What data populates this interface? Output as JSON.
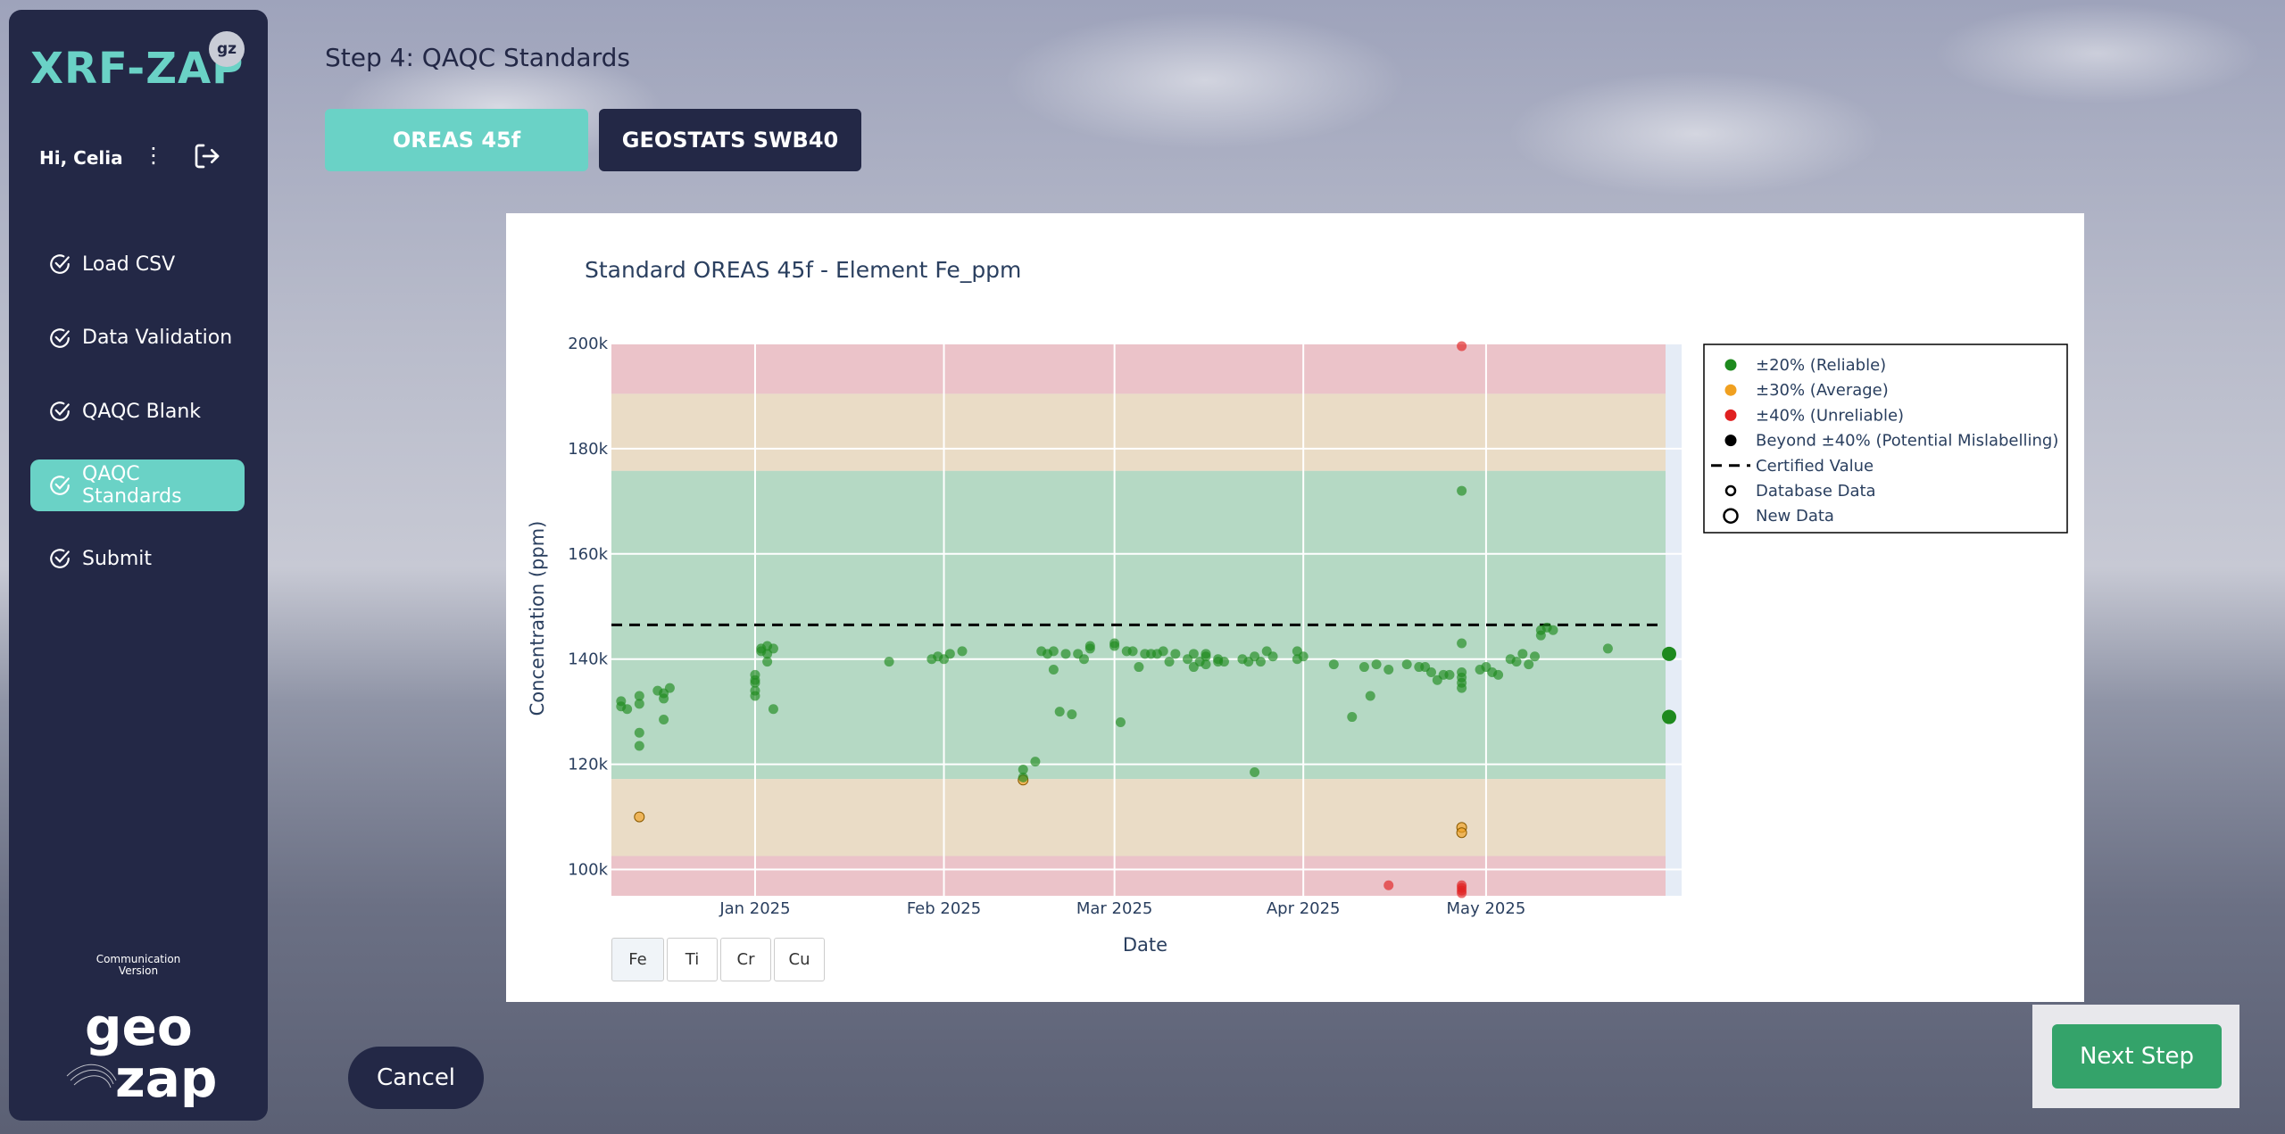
{
  "app": {
    "logo_text": "XRF-ZAP",
    "logo_badge": "gz",
    "greeting": "Hi, Celia",
    "version_line1": "Communication",
    "version_line2": "Version",
    "brand_logo": "geo zap"
  },
  "nav": {
    "items": [
      {
        "label": "Load CSV",
        "active": false
      },
      {
        "label": "Data Validation",
        "active": false
      },
      {
        "label": "QAQC Blank",
        "active": false
      },
      {
        "label": "QAQC Standards",
        "active": true
      },
      {
        "label": "Submit",
        "active": false
      }
    ]
  },
  "page": {
    "step_title": "Step 4: QAQC Standards",
    "tabs": [
      "OREAS 45f",
      "GEOSTATS SWB40"
    ],
    "cancel_label": "Cancel",
    "next_label": "Next Step"
  },
  "element_buttons": [
    "Fe",
    "Ti",
    "Cr",
    "Cu"
  ],
  "colors": {
    "navy": "#232846",
    "teal": "#6ad2c6",
    "green_button": "#34a36a",
    "reliable": "#1e8a1e",
    "average": "#f0a020",
    "unreliable": "#e02020",
    "mislabel": "#000000",
    "band_green": "#b5d9c4",
    "band_orange": "#eadcc6",
    "band_red": "#ebc3c9"
  },
  "chart_data": {
    "type": "scatter",
    "title": "Standard OREAS 45f - Element Fe_ppm",
    "xlabel": "Date",
    "ylabel": "Concentration (ppm)",
    "x_tick_labels": [
      "Jan 2025",
      "Feb 2025",
      "Mar 2025",
      "Apr 2025",
      "May 2025"
    ],
    "x_range_days": [
      -23,
      148
    ],
    "x_tick_days": [
      0,
      31,
      59,
      90,
      120
    ],
    "ylim": [
      95000,
      200000
    ],
    "y_ticks": [
      100000,
      120000,
      140000,
      160000,
      180000,
      200000
    ],
    "y_tick_labels": [
      "100k",
      "120k",
      "140k",
      "160k",
      "180k",
      "200k"
    ],
    "certified_value": 146500,
    "bands": [
      {
        "name": "±20%",
        "from": 117200,
        "to": 175800,
        "color": "green"
      },
      {
        "name": "±30% low",
        "from": 102550,
        "to": 117200,
        "color": "orange"
      },
      {
        "name": "±30% high",
        "from": 175800,
        "to": 190450,
        "color": "orange"
      },
      {
        "name": "±40% low",
        "from": 87900,
        "to": 102550,
        "color": "red"
      },
      {
        "name": "±40% high",
        "from": 190450,
        "to": 205100,
        "color": "red"
      }
    ],
    "legend": [
      {
        "label": "±20% (Reliable)",
        "symbol": "dot",
        "color": "#1e8a1e"
      },
      {
        "label": "±30% (Average)",
        "symbol": "dot",
        "color": "#f0a020"
      },
      {
        "label": "±40% (Unreliable)",
        "symbol": "dot",
        "color": "#e02020"
      },
      {
        "label": "Beyond ±40% (Potential Mislabelling)",
        "symbol": "dot",
        "color": "#000000"
      },
      {
        "label": "Certified Value",
        "symbol": "dash",
        "color": "#000000"
      },
      {
        "label": "Database Data",
        "symbol": "ring-small",
        "color": "#000000"
      },
      {
        "label": "New Data",
        "symbol": "ring-large",
        "color": "#000000"
      }
    ],
    "series": [
      {
        "name": "Database Data",
        "points": [
          [
            -22,
            131000,
            "g"
          ],
          [
            -22,
            132000,
            "g"
          ],
          [
            -21,
            130500,
            "g"
          ],
          [
            -19,
            133000,
            "g"
          ],
          [
            -19,
            131500,
            "g"
          ],
          [
            -19,
            126000,
            "g"
          ],
          [
            -19,
            123500,
            "g"
          ],
          [
            -19,
            110000,
            "o"
          ],
          [
            -16,
            134000,
            "g"
          ],
          [
            -15,
            133500,
            "g"
          ],
          [
            -15,
            132500,
            "g"
          ],
          [
            -15,
            128500,
            "g"
          ],
          [
            -14,
            134500,
            "g"
          ],
          [
            0,
            135500,
            "g"
          ],
          [
            0,
            136000,
            "g"
          ],
          [
            0,
            137000,
            "g"
          ],
          [
            0,
            134000,
            "g"
          ],
          [
            0,
            133000,
            "g"
          ],
          [
            1,
            141500,
            "g"
          ],
          [
            1,
            142000,
            "g"
          ],
          [
            2,
            141000,
            "g"
          ],
          [
            2,
            142500,
            "g"
          ],
          [
            2,
            139500,
            "g"
          ],
          [
            3,
            130500,
            "g"
          ],
          [
            3,
            142000,
            "g"
          ],
          [
            22,
            139500,
            "g"
          ],
          [
            29,
            140000,
            "g"
          ],
          [
            30,
            140500,
            "g"
          ],
          [
            31,
            140000,
            "g"
          ],
          [
            32,
            141000,
            "g"
          ],
          [
            34,
            141500,
            "g"
          ],
          [
            44,
            117000,
            "o"
          ],
          [
            44,
            117500,
            "g"
          ],
          [
            44,
            119000,
            "g"
          ],
          [
            46,
            120500,
            "g"
          ],
          [
            47,
            141500,
            "g"
          ],
          [
            48,
            141000,
            "g"
          ],
          [
            49,
            138000,
            "g"
          ],
          [
            49,
            141500,
            "g"
          ],
          [
            50,
            130000,
            "g"
          ],
          [
            51,
            141000,
            "g"
          ],
          [
            52,
            129500,
            "g"
          ],
          [
            53,
            141000,
            "g"
          ],
          [
            54,
            140000,
            "g"
          ],
          [
            55,
            142000,
            "g"
          ],
          [
            55,
            142500,
            "g"
          ],
          [
            59,
            143000,
            "g"
          ],
          [
            59,
            142500,
            "g"
          ],
          [
            60,
            128000,
            "g"
          ],
          [
            61,
            141500,
            "g"
          ],
          [
            62,
            141500,
            "g"
          ],
          [
            63,
            138500,
            "g"
          ],
          [
            64,
            141000,
            "g"
          ],
          [
            65,
            141000,
            "g"
          ],
          [
            66,
            141000,
            "g"
          ],
          [
            67,
            141500,
            "g"
          ],
          [
            68,
            139500,
            "g"
          ],
          [
            69,
            141000,
            "g"
          ],
          [
            71,
            140000,
            "g"
          ],
          [
            72,
            141000,
            "g"
          ],
          [
            73,
            139500,
            "g"
          ],
          [
            74,
            140500,
            "g"
          ],
          [
            76,
            139500,
            "g"
          ],
          [
            77,
            139500,
            "g"
          ],
          [
            74,
            141000,
            "g"
          ],
          [
            76,
            140000,
            "g"
          ],
          [
            74,
            139000,
            "g"
          ],
          [
            72,
            138500,
            "g"
          ],
          [
            80,
            140000,
            "g"
          ],
          [
            81,
            139500,
            "g"
          ],
          [
            82,
            140500,
            "g"
          ],
          [
            82,
            118500,
            "g"
          ],
          [
            83,
            139500,
            "g"
          ],
          [
            84,
            141500,
            "g"
          ],
          [
            85,
            140500,
            "g"
          ],
          [
            89,
            141500,
            "g"
          ],
          [
            89,
            140000,
            "g"
          ],
          [
            90,
            140500,
            "g"
          ],
          [
            95,
            139000,
            "g"
          ],
          [
            98,
            129000,
            "g"
          ],
          [
            100,
            138500,
            "g"
          ],
          [
            101,
            133000,
            "g"
          ],
          [
            102,
            139000,
            "g"
          ],
          [
            104,
            138000,
            "g"
          ],
          [
            104,
            97000,
            "r"
          ],
          [
            107,
            139000,
            "g"
          ],
          [
            109,
            138500,
            "g"
          ],
          [
            110,
            138500,
            "g"
          ],
          [
            111,
            137500,
            "g"
          ],
          [
            112,
            136000,
            "g"
          ],
          [
            113,
            137000,
            "g"
          ],
          [
            114,
            137000,
            "g"
          ],
          [
            116,
            143000,
            "g"
          ],
          [
            116,
            137500,
            "g"
          ],
          [
            116,
            136500,
            "g"
          ],
          [
            116,
            135500,
            "g"
          ],
          [
            116,
            134500,
            "g"
          ],
          [
            116,
            172000,
            "g"
          ],
          [
            116,
            199500,
            "r"
          ],
          [
            116,
            108000,
            "o"
          ],
          [
            116,
            107000,
            "o"
          ],
          [
            116,
            97000,
            "r"
          ],
          [
            116,
            96500,
            "r"
          ],
          [
            116,
            96000,
            "r"
          ],
          [
            116,
            95500,
            "r"
          ],
          [
            119,
            138000,
            "g"
          ],
          [
            120,
            138500,
            "g"
          ],
          [
            121,
            137500,
            "g"
          ],
          [
            122,
            137000,
            "g"
          ],
          [
            124,
            140000,
            "g"
          ],
          [
            125,
            139500,
            "g"
          ],
          [
            126,
            141000,
            "g"
          ],
          [
            127,
            139000,
            "g"
          ],
          [
            128,
            140500,
            "g"
          ],
          [
            129,
            145500,
            "g"
          ],
          [
            129,
            144500,
            "g"
          ],
          [
            130,
            146000,
            "g"
          ],
          [
            131,
            145500,
            "g"
          ],
          [
            140,
            142000,
            "g"
          ]
        ]
      },
      {
        "name": "New Data",
        "points": [
          [
            148,
            141000,
            "g"
          ],
          [
            148,
            129000,
            "g"
          ]
        ]
      }
    ]
  }
}
